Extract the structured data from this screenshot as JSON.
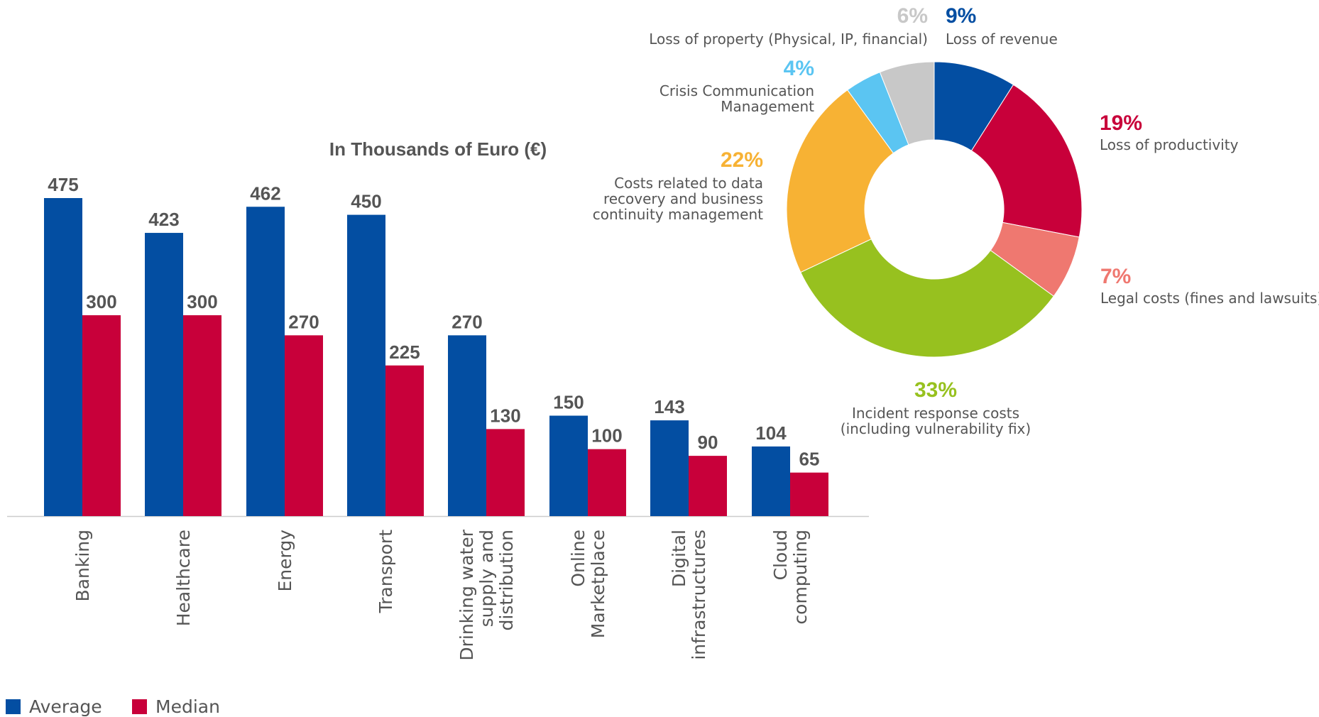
{
  "chart_data": [
    {
      "type": "bar",
      "title": "In Thousands of Euro (€)",
      "categories": [
        [
          "Banking"
        ],
        [
          "Healthcare"
        ],
        [
          "Energy"
        ],
        [
          "Transport"
        ],
        [
          "Drinking water",
          "supply and",
          "distribution"
        ],
        [
          "Online",
          "Marketplace"
        ],
        [
          "Digital",
          "infrastructures"
        ],
        [
          "Cloud",
          "computing"
        ]
      ],
      "series": [
        {
          "name": "Average",
          "color": "#034EA2",
          "values": [
            475,
            423,
            462,
            450,
            270,
            150,
            143,
            104
          ]
        },
        {
          "name": "Median",
          "color": "#C8003A",
          "values": [
            300,
            300,
            270,
            225,
            130,
            100,
            90,
            65
          ]
        }
      ],
      "ylim": [
        0,
        520
      ],
      "grid": false,
      "legend": "bottom-left"
    },
    {
      "type": "pie",
      "slices": [
        {
          "pct": "9%",
          "value": 9,
          "label": [
            "Loss of revenue"
          ],
          "color": "#034EA2"
        },
        {
          "pct": "19%",
          "value": 19,
          "label": [
            "Loss of productivity"
          ],
          "color": "#C8003A"
        },
        {
          "pct": "7%",
          "value": 7,
          "label": [
            "Legal costs (fines and lawsuits)"
          ],
          "color": "#EF7870"
        },
        {
          "pct": "33%",
          "value": 33,
          "label": [
            "Incident response costs",
            "(including vulnerability fix)"
          ],
          "color": "#97C11F"
        },
        {
          "pct": "22%",
          "value": 22,
          "label": [
            "Costs related to data",
            "recovery and business",
            "continuity management"
          ],
          "color": "#F7B234"
        },
        {
          "pct": "4%",
          "value": 4,
          "label": [
            "Crisis Communication",
            "Management"
          ],
          "color": "#5BC5F2"
        },
        {
          "pct": "6%",
          "value": 6,
          "label": [
            "Loss of property (Physical, IP, financial)"
          ],
          "color": "#C8C8C8"
        }
      ]
    }
  ]
}
